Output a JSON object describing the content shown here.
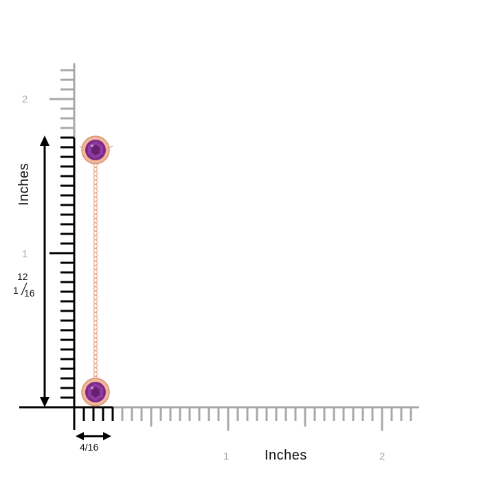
{
  "rulers": {
    "y_axis": {
      "unit_label": "Inches",
      "tick_labels": [
        "1",
        "2"
      ]
    },
    "x_axis": {
      "unit_label": "Inches",
      "tick_labels": [
        "1",
        "2"
      ]
    }
  },
  "dimensions": {
    "height": {
      "whole": "1",
      "numerator": "12",
      "denominator": "16"
    },
    "width": {
      "text": "4/16"
    }
  },
  "colors": {
    "ruler_gray": "#a8a8a8",
    "ruler_black": "#000000",
    "rose_gold": "#e6a88a",
    "amethyst": "#7b2a86"
  },
  "product": {
    "type": "bezel-set amethyst station necklace",
    "stones": 2
  }
}
